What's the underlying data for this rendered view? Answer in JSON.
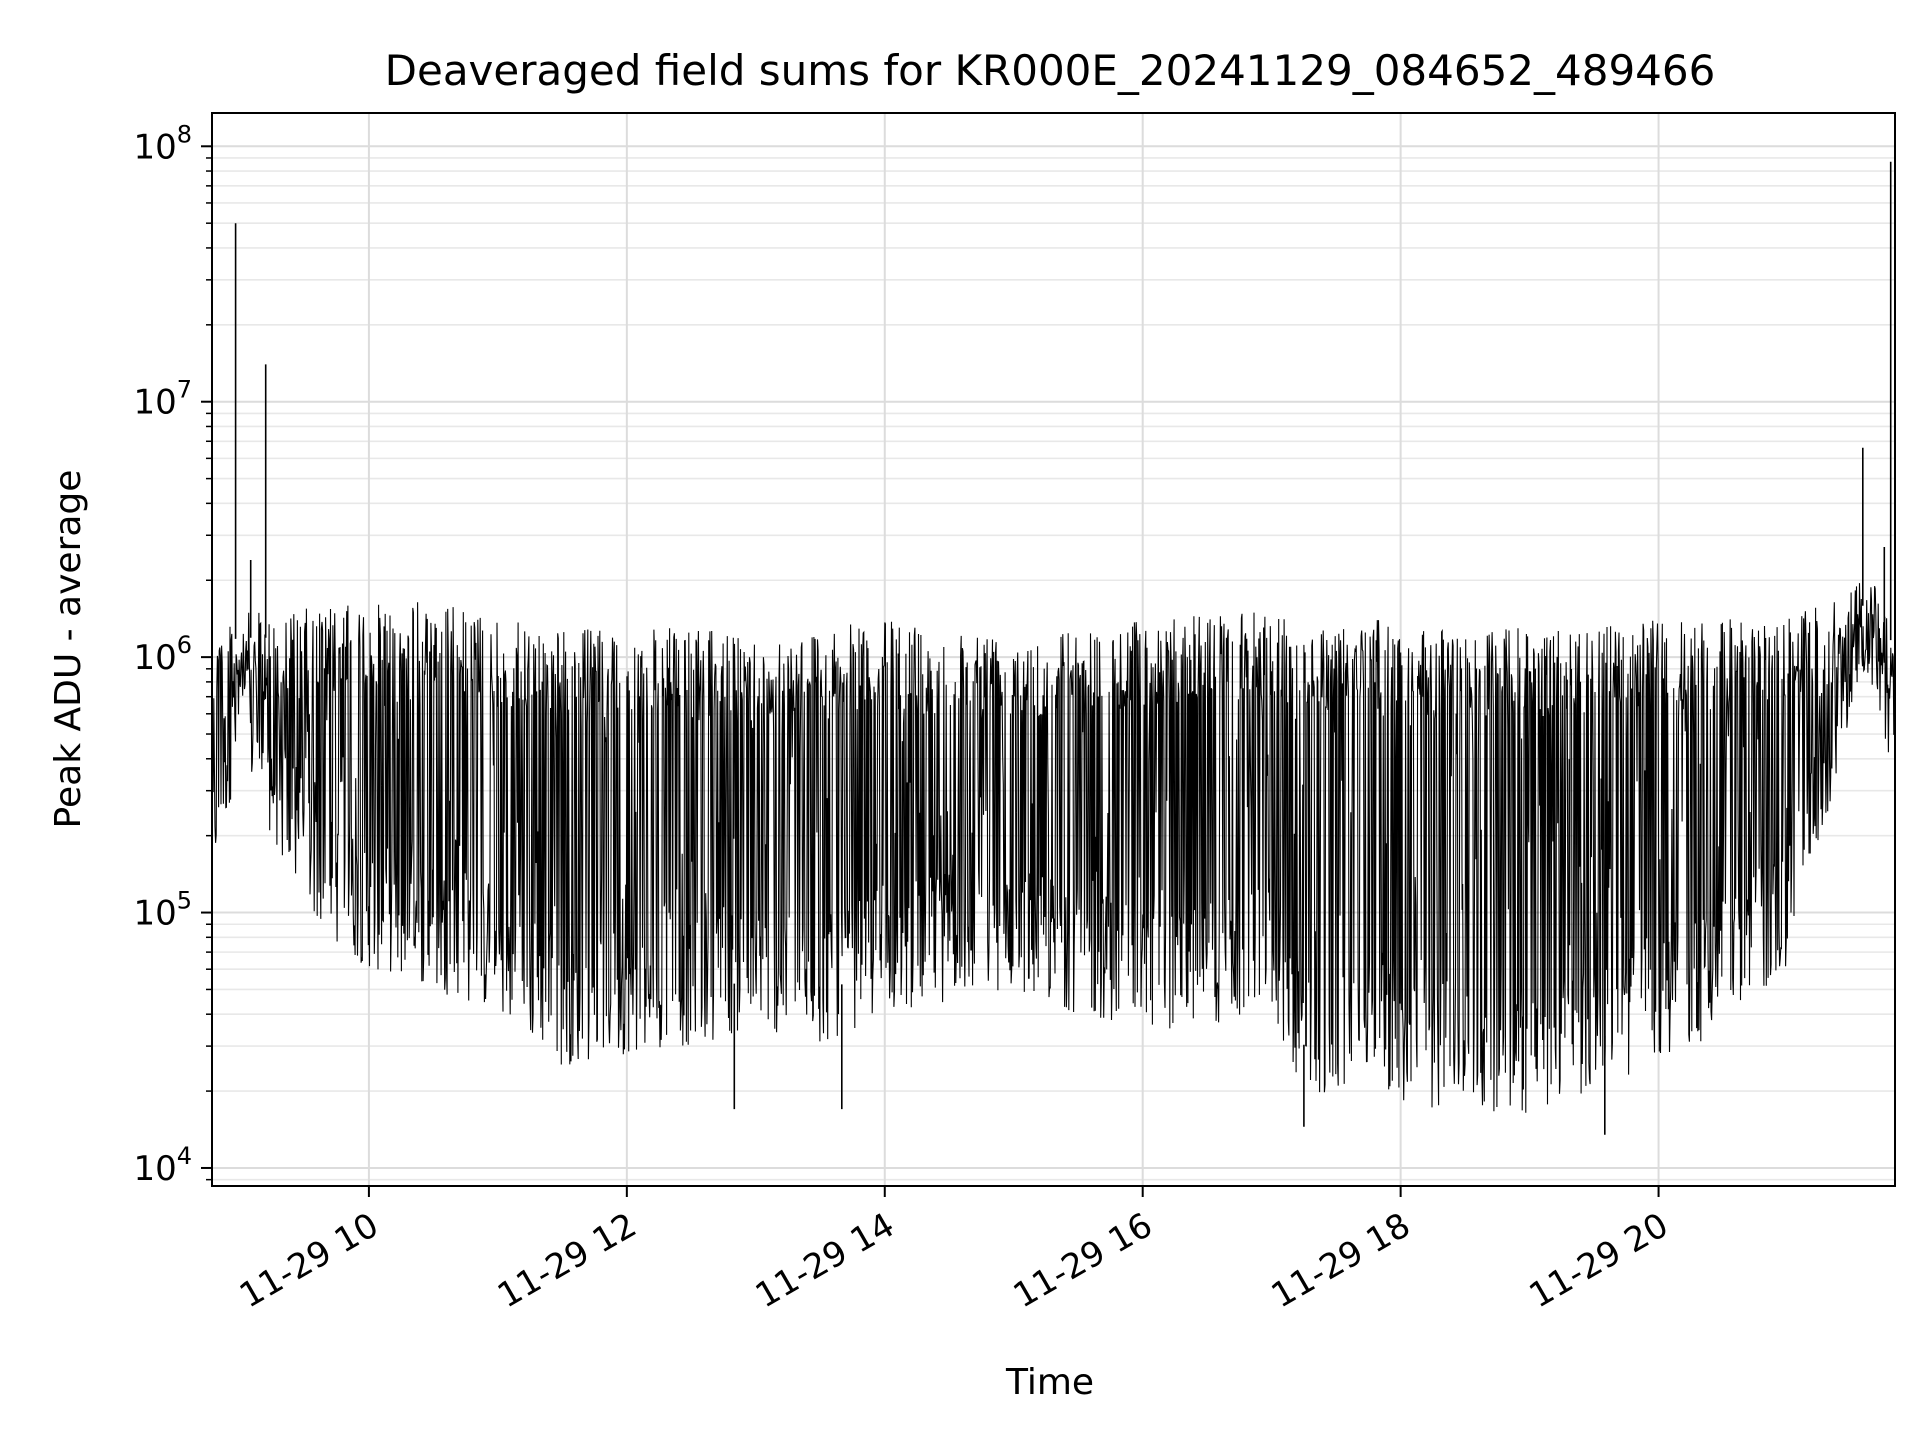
{
  "chart_data": {
    "type": "line",
    "title": "Deaveraged field sums for KR000E_20241129_084652_489466",
    "xlabel": "Time",
    "ylabel": "Peak ADU - average",
    "x_range": [
      "2024-11-29T08:47",
      "2024-11-29T21:50"
    ],
    "y_scale": "log",
    "ylim": [
      8500,
      135000000
    ],
    "grid": "on (major and minor)",
    "legend": "none",
    "line_color": "#000000",
    "x_ticks": [
      {
        "t": "2024-11-29T10:00",
        "label": "11-29 10"
      },
      {
        "t": "2024-11-29T12:00",
        "label": "11-29 12"
      },
      {
        "t": "2024-11-29T14:00",
        "label": "11-29 14"
      },
      {
        "t": "2024-11-29T16:00",
        "label": "11-29 16"
      },
      {
        "t": "2024-11-29T18:00",
        "label": "11-29 18"
      },
      {
        "t": "2024-11-29T20:00",
        "label": "11-29 20"
      }
    ],
    "y_ticks": [
      {
        "value": 10000,
        "base": "10",
        "exp": "4"
      },
      {
        "value": 100000,
        "base": "10",
        "exp": "5"
      },
      {
        "value": 1000000,
        "base": "10",
        "exp": "6"
      },
      {
        "value": 10000000,
        "base": "10",
        "exp": "7"
      },
      {
        "value": 100000000,
        "base": "10",
        "exp": "8"
      }
    ],
    "series": [
      {
        "approx_envelope": [
          {
            "t": "2024-11-29T08:47",
            "low": 130000,
            "high": 1400000
          },
          {
            "t": "2024-11-29T09:00",
            "low": 400000,
            "high": 1500000
          },
          {
            "t": "2024-11-29T09:20",
            "low": 150000,
            "high": 1500000
          },
          {
            "t": "2024-11-29T09:40",
            "low": 80000,
            "high": 1600000
          },
          {
            "t": "2024-11-29T10:00",
            "low": 60000,
            "high": 1600000
          },
          {
            "t": "2024-11-29T10:30",
            "low": 50000,
            "high": 1700000
          },
          {
            "t": "2024-11-29T11:00",
            "low": 40000,
            "high": 1400000
          },
          {
            "t": "2024-11-29T11:30",
            "low": 25000,
            "high": 1300000
          },
          {
            "t": "2024-11-29T12:00",
            "low": 28000,
            "high": 1300000
          },
          {
            "t": "2024-11-29T12:30",
            "low": 30000,
            "high": 1300000
          },
          {
            "t": "2024-11-29T13:00",
            "low": 35000,
            "high": 1200000
          },
          {
            "t": "2024-11-29T13:30",
            "low": 30000,
            "high": 1300000
          },
          {
            "t": "2024-11-29T14:00",
            "low": 40000,
            "high": 1400000
          },
          {
            "t": "2024-11-29T14:30",
            "low": 45000,
            "high": 1300000
          },
          {
            "t": "2024-11-29T15:00",
            "low": 50000,
            "high": 1300000
          },
          {
            "t": "2024-11-29T15:30",
            "low": 40000,
            "high": 1300000
          },
          {
            "t": "2024-11-29T16:00",
            "low": 35000,
            "high": 1400000
          },
          {
            "t": "2024-11-29T16:30",
            "low": 35000,
            "high": 1500000
          },
          {
            "t": "2024-11-29T17:00",
            "low": 40000,
            "high": 1500000
          },
          {
            "t": "2024-11-29T17:20",
            "low": 15000,
            "high": 1300000
          },
          {
            "t": "2024-11-29T17:40",
            "low": 25000,
            "high": 1500000
          },
          {
            "t": "2024-11-29T18:00",
            "low": 17000,
            "high": 1300000
          },
          {
            "t": "2024-11-29T18:30",
            "low": 17000,
            "high": 1300000
          },
          {
            "t": "2024-11-29T19:00",
            "low": 16000,
            "high": 1300000
          },
          {
            "t": "2024-11-29T19:30",
            "low": 20000,
            "high": 1300000
          },
          {
            "t": "2024-11-29T20:00",
            "low": 25000,
            "high": 1400000
          },
          {
            "t": "2024-11-29T20:30",
            "low": 35000,
            "high": 1400000
          },
          {
            "t": "2024-11-29T21:00",
            "low": 60000,
            "high": 1500000
          },
          {
            "t": "2024-11-29T21:20",
            "low": 250000,
            "high": 1600000
          },
          {
            "t": "2024-11-29T21:35",
            "low": 900000,
            "high": 2000000
          },
          {
            "t": "2024-11-29T21:50",
            "low": 330000,
            "high": 1400000
          }
        ],
        "spikes": [
          {
            "t": "2024-11-29T08:58",
            "value": 50000000
          },
          {
            "t": "2024-11-29T09:12",
            "value": 14000000
          },
          {
            "t": "2024-11-29T09:05",
            "value": 2400000
          },
          {
            "t": "2024-11-29T21:35",
            "value": 6600000
          },
          {
            "t": "2024-11-29T21:45",
            "value": 2700000
          },
          {
            "t": "2024-11-29T21:48",
            "value": 87000000
          }
        ],
        "low_dips": [
          {
            "t": "2024-11-29T12:50",
            "value": 17000
          },
          {
            "t": "2024-11-29T13:40",
            "value": 17000
          },
          {
            "t": "2024-11-29T17:15",
            "value": 14500
          },
          {
            "t": "2024-11-29T19:35",
            "value": 13500
          }
        ]
      }
    ]
  }
}
